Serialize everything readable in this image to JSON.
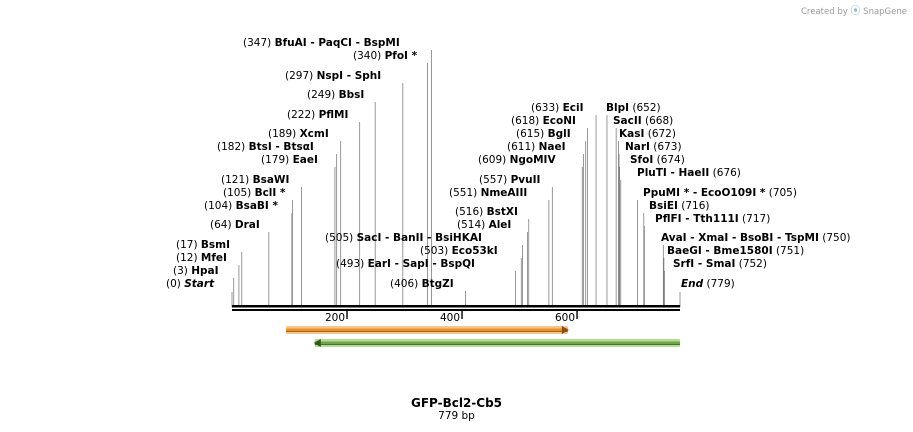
{
  "credit": {
    "prefix": "Created by",
    "brand": "SnapGene"
  },
  "map": {
    "name": "GFP-Bcl2-Cb5",
    "length_label": "779 bp",
    "bp": 779,
    "start_label": "Start",
    "start_pos": "(0)",
    "end_label": "End",
    "end_pos": "(779)",
    "ticks": [
      {
        "bp": 200,
        "label": "200"
      },
      {
        "bp": 400,
        "label": "400"
      },
      {
        "bp": 600,
        "label": "600"
      }
    ]
  },
  "features": [
    {
      "name": "orange-feature",
      "start": 94,
      "end": 584,
      "direction": "forward",
      "fill": "#f6c38a",
      "stroke": "#e8912a",
      "edge": "#8a4d12"
    },
    {
      "name": "green-feature",
      "start": 144,
      "end": 779,
      "direction": "reverse",
      "fill": "#b8dc8f",
      "stroke": "#6aa84f",
      "edge": "#2d5a1b"
    }
  ],
  "sites": [
    {
      "pos": "(347)",
      "enzymes": [
        "BfuAI",
        "PaqCI",
        "BspMI"
      ],
      "marks": [
        347
      ]
    },
    {
      "pos": "(340)",
      "enzymes": [
        "PfoI *"
      ],
      "marks": [
        340
      ]
    },
    {
      "pos": "(297)",
      "enzymes": [
        "NspI",
        "SphI"
      ],
      "marks": [
        297
      ]
    },
    {
      "pos": "(249)",
      "enzymes": [
        "BbsI"
      ],
      "marks": [
        249
      ]
    },
    {
      "pos": "(222)",
      "enzymes": [
        "PflMI"
      ],
      "marks": [
        222
      ]
    },
    {
      "pos": "(189)",
      "enzymes": [
        "XcmI"
      ],
      "marks": [
        189
      ]
    },
    {
      "pos": "(182)",
      "enzymes": [
        "BtsI",
        "BtsαI"
      ],
      "marks": [
        182
      ]
    },
    {
      "pos": "(179)",
      "enzymes": [
        "EaeI"
      ],
      "marks": [
        179
      ]
    },
    {
      "pos": "(121)",
      "enzymes": [
        "BsaWI"
      ],
      "marks": [
        121
      ]
    },
    {
      "pos": "(105)",
      "enzymes": [
        "BclI *"
      ],
      "marks": [
        105
      ]
    },
    {
      "pos": "(104)",
      "enzymes": [
        "BsaBI *"
      ],
      "marks": [
        104
      ]
    },
    {
      "pos": "(64)",
      "enzymes": [
        "DraI"
      ],
      "marks": [
        64
      ]
    },
    {
      "pos": "(17)",
      "enzymes": [
        "BsmI"
      ],
      "marks": [
        17
      ]
    },
    {
      "pos": "(12)",
      "enzymes": [
        "MfeI"
      ],
      "marks": [
        12
      ]
    },
    {
      "pos": "(3)",
      "enzymes": [
        "HpaI"
      ],
      "marks": [
        3
      ]
    },
    {
      "pos": "(505)",
      "enzymes": [
        "SacI",
        "BanII",
        "BsiHKAI"
      ],
      "marks": [
        505
      ]
    },
    {
      "pos": "(493)",
      "enzymes": [
        "EarI",
        "SapI",
        "BspQI"
      ],
      "marks": [
        493
      ]
    },
    {
      "pos": "(406)",
      "enzymes": [
        "BtgZI"
      ],
      "marks": [
        406
      ]
    },
    {
      "pos": "(633)",
      "enzymes": [
        "EciI"
      ],
      "marks": [
        633
      ]
    },
    {
      "pos": "(652)",
      "enzymes": [
        "BlpI"
      ],
      "marks": [
        652
      ],
      "pos_after": true
    },
    {
      "pos": "(618)",
      "enzymes": [
        "EcoNI"
      ],
      "marks": [
        618
      ]
    },
    {
      "pos": "(668)",
      "enzymes": [
        "SacII"
      ],
      "marks": [
        668
      ],
      "pos_after": true
    },
    {
      "pos": "(615)",
      "enzymes": [
        "BglI"
      ],
      "marks": [
        615
      ]
    },
    {
      "pos": "(672)",
      "enzymes": [
        "KasI"
      ],
      "marks": [
        672
      ],
      "pos_after": true
    },
    {
      "pos": "(611)",
      "enzymes": [
        "NaeI"
      ],
      "marks": [
        611
      ]
    },
    {
      "pos": "(673)",
      "enzymes": [
        "NarI"
      ],
      "marks": [
        673
      ],
      "pos_after": true
    },
    {
      "pos": "(609)",
      "enzymes": [
        "NgoMIV"
      ],
      "marks": [
        609
      ]
    },
    {
      "pos": "(674)",
      "enzymes": [
        "SfoI"
      ],
      "marks": [
        674
      ],
      "pos_after": true
    },
    {
      "pos": "(676)",
      "enzymes": [
        "PluTI",
        "HaeII"
      ],
      "marks": [
        676
      ],
      "pos_after": true
    },
    {
      "pos": "(557)",
      "enzymes": [
        "PvuII"
      ],
      "marks": [
        557
      ]
    },
    {
      "pos": "(551)",
      "enzymes": [
        "NmeAIII"
      ],
      "marks": [
        551
      ]
    },
    {
      "pos": "(705)",
      "enzymes": [
        "PpuMI *",
        "EcoO109I *"
      ],
      "marks": [
        705
      ],
      "pos_after": true
    },
    {
      "pos": "(716)",
      "enzymes": [
        "BsiEI"
      ],
      "marks": [
        716
      ],
      "pos_after": true
    },
    {
      "pos": "(717)",
      "enzymes": [
        "PflFI",
        "Tth111I"
      ],
      "marks": [
        717
      ],
      "pos_after": true
    },
    {
      "pos": "(516)",
      "enzymes": [
        "BstXI"
      ],
      "marks": [
        516
      ]
    },
    {
      "pos": "(514)",
      "enzymes": [
        "AleI"
      ],
      "marks": [
        514
      ]
    },
    {
      "pos": "(750)",
      "enzymes": [
        "AvaI",
        "XmaI",
        "BsoBI",
        "TspMI"
      ],
      "marks": [
        750
      ],
      "pos_after": true
    },
    {
      "pos": "(503)",
      "enzymes": [
        "Eco53kI"
      ],
      "marks": [
        503
      ]
    },
    {
      "pos": "(751)",
      "enzymes": [
        "BaeGI",
        "Bme1580I"
      ],
      "marks": [
        751
      ],
      "pos_after": true
    },
    {
      "pos": "(752)",
      "enzymes": [
        "SrfI",
        "SmaI"
      ],
      "marks": [
        752
      ],
      "pos_after": true
    }
  ]
}
